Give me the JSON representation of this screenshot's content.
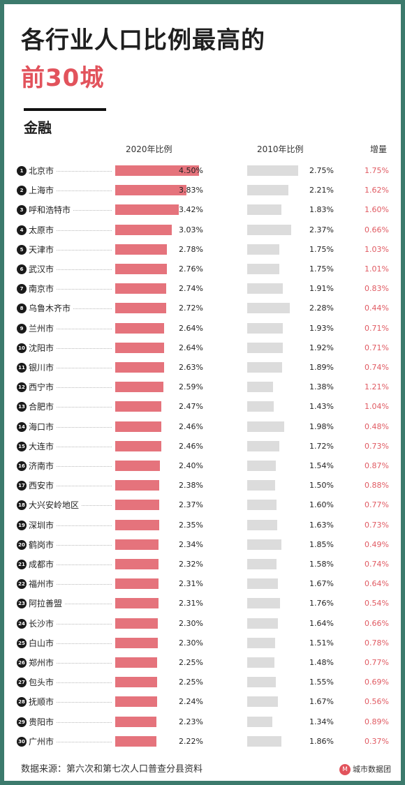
{
  "title": {
    "line1": "各行业人口比例最高的",
    "line2": "前30城"
  },
  "sector": "金融",
  "headers": {
    "col2020": "2020年比例",
    "col2010": "2010年比例",
    "increase": "增量"
  },
  "footer": {
    "source": "数据来源：第六次和第七次人口普查分县资料",
    "brand": "城市数据团"
  },
  "colors": {
    "accent": "#e2535c",
    "bar2020": "#e5737c",
    "bar2010": "#dcdcdc",
    "frame": "#3c7a6c"
  },
  "chart_data": {
    "type": "bar",
    "series": [
      {
        "name": "2020年比例",
        "unit": "%"
      },
      {
        "name": "2010年比例",
        "unit": "%"
      },
      {
        "name": "增量",
        "unit": "%"
      }
    ],
    "rows": [
      {
        "rank": "1",
        "city": "北京市",
        "v2020": 4.5,
        "v2010": 2.75,
        "inc": 1.75
      },
      {
        "rank": "2",
        "city": "上海市",
        "v2020": 3.83,
        "v2010": 2.21,
        "inc": 1.62
      },
      {
        "rank": "3",
        "city": "呼和浩特市",
        "v2020": 3.42,
        "v2010": 1.83,
        "inc": 1.6
      },
      {
        "rank": "4",
        "city": "太原市",
        "v2020": 3.03,
        "v2010": 2.37,
        "inc": 0.66
      },
      {
        "rank": "5",
        "city": "天津市",
        "v2020": 2.78,
        "v2010": 1.75,
        "inc": 1.03
      },
      {
        "rank": "6",
        "city": "武汉市",
        "v2020": 2.76,
        "v2010": 1.75,
        "inc": 1.01
      },
      {
        "rank": "7",
        "city": "南京市",
        "v2020": 2.74,
        "v2010": 1.91,
        "inc": 0.83
      },
      {
        "rank": "8",
        "city": "乌鲁木齐市",
        "v2020": 2.72,
        "v2010": 2.28,
        "inc": 0.44
      },
      {
        "rank": "9",
        "city": "兰州市",
        "v2020": 2.64,
        "v2010": 1.93,
        "inc": 0.71
      },
      {
        "rank": "10",
        "city": "沈阳市",
        "v2020": 2.64,
        "v2010": 1.92,
        "inc": 0.71
      },
      {
        "rank": "11",
        "city": "银川市",
        "v2020": 2.63,
        "v2010": 1.89,
        "inc": 0.74
      },
      {
        "rank": "12",
        "city": "西宁市",
        "v2020": 2.59,
        "v2010": 1.38,
        "inc": 1.21
      },
      {
        "rank": "13",
        "city": "合肥市",
        "v2020": 2.47,
        "v2010": 1.43,
        "inc": 1.04
      },
      {
        "rank": "14",
        "city": "海口市",
        "v2020": 2.46,
        "v2010": 1.98,
        "inc": 0.48
      },
      {
        "rank": "15",
        "city": "大连市",
        "v2020": 2.46,
        "v2010": 1.72,
        "inc": 0.73
      },
      {
        "rank": "16",
        "city": "济南市",
        "v2020": 2.4,
        "v2010": 1.54,
        "inc": 0.87
      },
      {
        "rank": "17",
        "city": "西安市",
        "v2020": 2.38,
        "v2010": 1.5,
        "inc": 0.88
      },
      {
        "rank": "18",
        "city": "大兴安岭地区",
        "v2020": 2.37,
        "v2010": 1.6,
        "inc": 0.77
      },
      {
        "rank": "19",
        "city": "深圳市",
        "v2020": 2.35,
        "v2010": 1.63,
        "inc": 0.73
      },
      {
        "rank": "20",
        "city": "鹤岗市",
        "v2020": 2.34,
        "v2010": 1.85,
        "inc": 0.49
      },
      {
        "rank": "21",
        "city": "成都市",
        "v2020": 2.32,
        "v2010": 1.58,
        "inc": 0.74
      },
      {
        "rank": "22",
        "city": "福州市",
        "v2020": 2.31,
        "v2010": 1.67,
        "inc": 0.64
      },
      {
        "rank": "23",
        "city": "阿拉善盟",
        "v2020": 2.31,
        "v2010": 1.76,
        "inc": 0.54
      },
      {
        "rank": "24",
        "city": "长沙市",
        "v2020": 2.3,
        "v2010": 1.64,
        "inc": 0.66
      },
      {
        "rank": "25",
        "city": "白山市",
        "v2020": 2.3,
        "v2010": 1.51,
        "inc": 0.78
      },
      {
        "rank": "26",
        "city": "郑州市",
        "v2020": 2.25,
        "v2010": 1.48,
        "inc": 0.77
      },
      {
        "rank": "27",
        "city": "包头市",
        "v2020": 2.25,
        "v2010": 1.55,
        "inc": 0.69
      },
      {
        "rank": "28",
        "city": "抚顺市",
        "v2020": 2.24,
        "v2010": 1.67,
        "inc": 0.56
      },
      {
        "rank": "29",
        "city": "贵阳市",
        "v2020": 2.23,
        "v2010": 1.34,
        "inc": 0.89
      },
      {
        "rank": "30",
        "city": "广州市",
        "v2020": 2.22,
        "v2010": 1.86,
        "inc": 0.37
      }
    ]
  }
}
